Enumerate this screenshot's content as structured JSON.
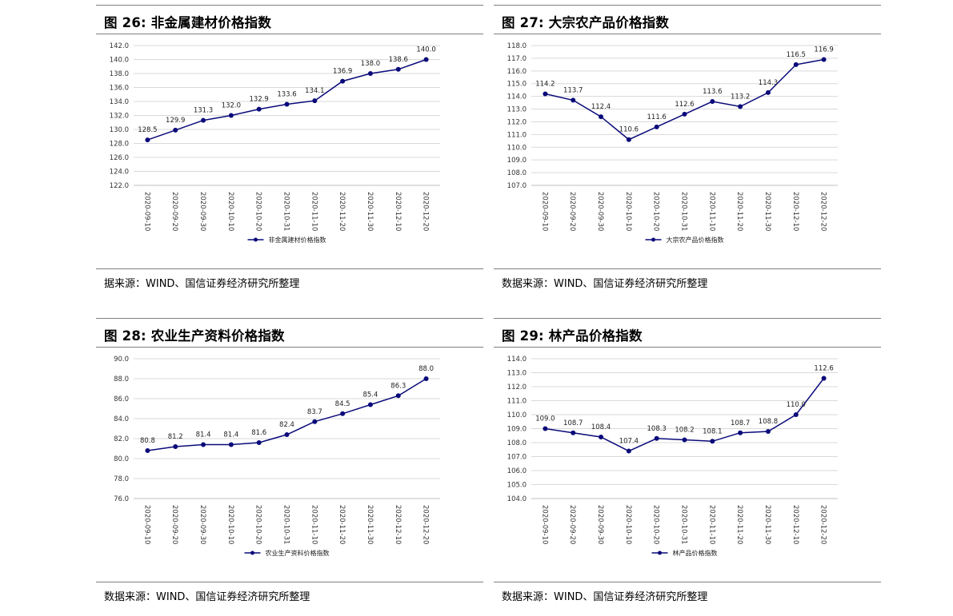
{
  "panels": [
    {
      "title": "图 26:  非金属建材价格指数",
      "source": "据来源：WIND、国信证券经济研究所整理",
      "chart_data": {
        "type": "line",
        "categories": [
          "2020-09-10",
          "2020-09-20",
          "2020-09-30",
          "2020-10-10",
          "2020-10-20",
          "2020-10-31",
          "2020-11-10",
          "2020-11-20",
          "2020-11-30",
          "2020-12-10",
          "2020-12-20"
        ],
        "series": [
          {
            "name": "非金属建材价格指数",
            "values": [
              128.5,
              129.9,
              131.3,
              132.0,
              132.9,
              133.6,
              134.1,
              136.9,
              138.0,
              138.6,
              140.0
            ]
          }
        ],
        "ylim": [
          122.0,
          142.0
        ],
        "yticks": [
          122.0,
          124.0,
          126.0,
          128.0,
          130.0,
          132.0,
          134.0,
          136.0,
          138.0,
          140.0,
          142.0
        ],
        "xlabel": "",
        "ylabel": "",
        "grid": true,
        "legend": "bottom-center",
        "color": "#0a0a7a"
      }
    },
    {
      "title": "图 27:  大宗农产品价格指数",
      "source": "数据来源：WIND、国信证券经济研究所整理",
      "chart_data": {
        "type": "line",
        "categories": [
          "2020-09-10",
          "2020-09-20",
          "2020-09-30",
          "2020-10-10",
          "2020-10-20",
          "2020-10-31",
          "2020-11-10",
          "2020-11-20",
          "2020-11-30",
          "2020-12-10",
          "2020-12-20"
        ],
        "series": [
          {
            "name": "大宗农产品价格指数",
            "values": [
              114.2,
              113.7,
              112.4,
              110.6,
              111.6,
              112.6,
              113.6,
              113.2,
              114.3,
              116.5,
              116.9
            ]
          }
        ],
        "ylim": [
          107.0,
          118.0
        ],
        "yticks": [
          107.0,
          108.0,
          109.0,
          110.0,
          111.0,
          112.0,
          113.0,
          114.0,
          115.0,
          116.0,
          117.0,
          118.0
        ],
        "xlabel": "",
        "ylabel": "",
        "grid": true,
        "legend": "bottom-center",
        "color": "#0a0a7a"
      }
    },
    {
      "title": "图 28:  农业生产资料价格指数",
      "source": "数据来源：WIND、国信证券经济研究所整理",
      "chart_data": {
        "type": "line",
        "categories": [
          "2020-09-10",
          "2020-09-20",
          "2020-09-30",
          "2020-10-10",
          "2020-10-20",
          "2020-10-31",
          "2020-11-10",
          "2020-11-20",
          "2020-11-30",
          "2020-12-10",
          "2020-12-20"
        ],
        "series": [
          {
            "name": "农业生产资料价格指数",
            "values": [
              80.8,
              81.2,
              81.4,
              81.4,
              81.6,
              82.4,
              83.7,
              84.5,
              85.4,
              86.3,
              88.0
            ]
          }
        ],
        "ylim": [
          76.0,
          90.0
        ],
        "yticks": [
          76.0,
          78.0,
          80.0,
          82.0,
          84.0,
          86.0,
          88.0,
          90.0
        ],
        "xlabel": "",
        "ylabel": "",
        "grid": true,
        "legend": "bottom-center",
        "color": "#0a0a7a"
      }
    },
    {
      "title": "图 29:  林产品价格指数",
      "source": "数据来源：WIND、国信证券经济研究所整理",
      "chart_data": {
        "type": "line",
        "categories": [
          "2020-09-10",
          "2020-09-20",
          "2020-09-30",
          "2020-10-10",
          "2020-10-20",
          "2020-10-31",
          "2020-11-10",
          "2020-11-20",
          "2020-11-30",
          "2020-12-10",
          "2020-12-20"
        ],
        "series": [
          {
            "name": "林产品价格指数",
            "values": [
              109.0,
              108.7,
              108.4,
              107.4,
              108.3,
              108.2,
              108.1,
              108.7,
              108.8,
              110.0,
              112.6
            ]
          }
        ],
        "ylim": [
          104.0,
          114.0
        ],
        "yticks": [
          104.0,
          105.0,
          106.0,
          107.0,
          108.0,
          109.0,
          110.0,
          111.0,
          112.0,
          113.0,
          114.0
        ],
        "xlabel": "",
        "ylabel": "",
        "grid": true,
        "legend": "bottom-center",
        "color": "#0a0a7a"
      }
    }
  ]
}
